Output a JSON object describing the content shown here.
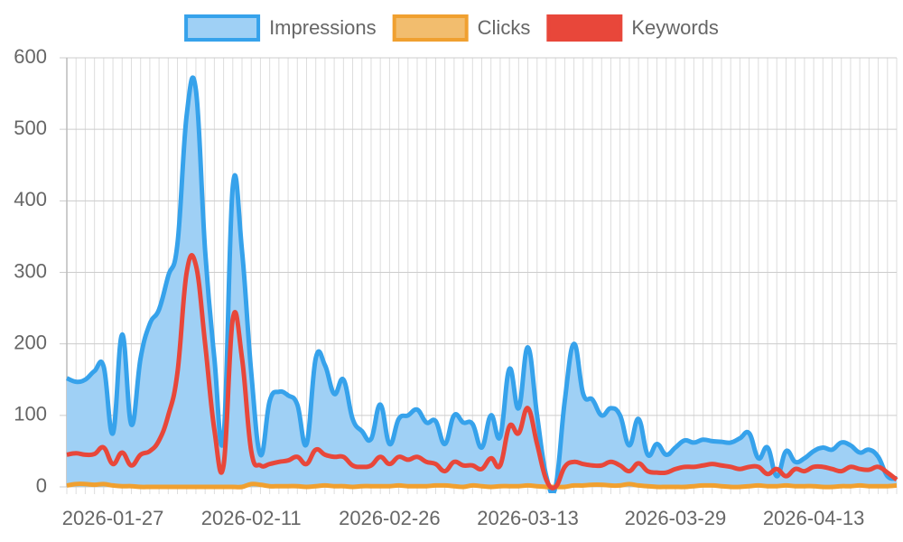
{
  "chart_data": {
    "type": "line",
    "categories": [
      null,
      null,
      null,
      null,
      null,
      "2026-01-27",
      null,
      null,
      null,
      null,
      null,
      null,
      null,
      null,
      null,
      null,
      null,
      null,
      null,
      null,
      "2026-02-11",
      null,
      null,
      null,
      null,
      null,
      null,
      null,
      null,
      null,
      null,
      null,
      null,
      null,
      null,
      "2026-02-26",
      null,
      null,
      null,
      null,
      null,
      null,
      null,
      null,
      null,
      null,
      null,
      null,
      null,
      null,
      "2026-03-13",
      null,
      null,
      null,
      null,
      null,
      null,
      null,
      null,
      null,
      null,
      null,
      null,
      null,
      null,
      null,
      "2026-03-29",
      null,
      null,
      null,
      null,
      null,
      null,
      null,
      null,
      null,
      null,
      null,
      null,
      null,
      null,
      "2026-04-13",
      null,
      null,
      null,
      null,
      null,
      null,
      null,
      null,
      null
    ],
    "series": [
      {
        "name": "Impressions",
        "color": "#36a2eb",
        "fill_color": "#9fd0f5",
        "fill": true,
        "values": [
          152,
          147,
          150,
          162,
          168,
          75,
          213,
          87,
          180,
          228,
          248,
          295,
          340,
          520,
          555,
          330,
          180,
          70,
          420,
          330,
          160,
          45,
          120,
          133,
          128,
          115,
          60,
          180,
          170,
          130,
          150,
          95,
          78,
          67,
          115,
          60,
          95,
          100,
          108,
          90,
          92,
          60,
          100,
          90,
          88,
          55,
          100,
          70,
          165,
          110,
          195,
          100,
          15,
          0,
          120,
          200,
          130,
          122,
          100,
          110,
          100,
          58,
          95,
          45,
          60,
          45,
          55,
          65,
          62,
          66,
          64,
          63,
          62,
          68,
          75,
          40,
          55,
          15,
          50,
          35,
          40,
          50,
          55,
          52,
          62,
          58,
          48,
          52,
          42,
          15,
          12
        ]
      },
      {
        "name": "Clicks",
        "color": "#f0a030",
        "fill_color": "#f2bd6e",
        "fill": false,
        "values": [
          2,
          4,
          4,
          3,
          4,
          2,
          1,
          1,
          0,
          0,
          0,
          0,
          0,
          0,
          0,
          0,
          0,
          0,
          0,
          0,
          4,
          3,
          1,
          1,
          1,
          1,
          0,
          1,
          2,
          1,
          1,
          0,
          1,
          1,
          1,
          1,
          2,
          1,
          1,
          1,
          2,
          2,
          1,
          0,
          2,
          1,
          0,
          1,
          1,
          1,
          2,
          1,
          0,
          0,
          0,
          2,
          2,
          3,
          3,
          2,
          2,
          4,
          2,
          1,
          0,
          0,
          0,
          0,
          1,
          2,
          2,
          1,
          0,
          0,
          1,
          2,
          1,
          1,
          2,
          1,
          1,
          1,
          0,
          0,
          1,
          1,
          2,
          1,
          1,
          1,
          2
        ]
      },
      {
        "name": "Keywords",
        "color": "#e8473a",
        "fill_color": "#e8473a",
        "fill": false,
        "values": [
          45,
          47,
          45,
          46,
          55,
          32,
          48,
          30,
          45,
          50,
          65,
          100,
          160,
          300,
          310,
          200,
          80,
          30,
          235,
          180,
          50,
          30,
          32,
          35,
          37,
          42,
          32,
          52,
          45,
          42,
          42,
          30,
          28,
          30,
          42,
          32,
          42,
          38,
          42,
          35,
          32,
          22,
          35,
          30,
          30,
          25,
          40,
          30,
          85,
          75,
          110,
          60,
          10,
          0,
          28,
          35,
          32,
          30,
          30,
          35,
          30,
          22,
          33,
          22,
          20,
          20,
          25,
          28,
          28,
          30,
          32,
          30,
          28,
          25,
          28,
          28,
          18,
          25,
          15,
          25,
          22,
          28,
          28,
          25,
          22,
          28,
          25,
          24,
          28,
          20,
          10
        ]
      }
    ],
    "ylim": [
      0,
      600
    ],
    "yticks": [
      0,
      100,
      200,
      300,
      400,
      500,
      600
    ],
    "grid": true,
    "legend": "top"
  }
}
